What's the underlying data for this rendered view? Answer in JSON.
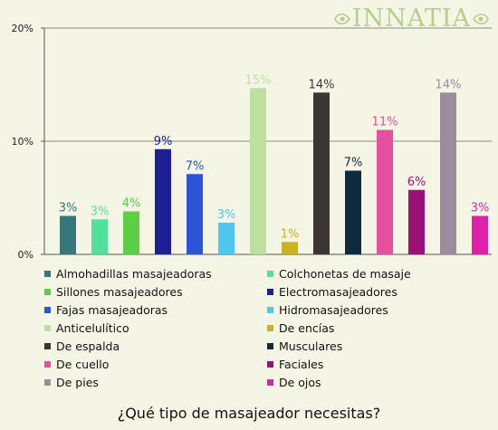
{
  "brand": {
    "name": "INNATIA",
    "color": "#b4d08c"
  },
  "chart_data": {
    "type": "bar",
    "title": "¿Qué tipo de masajeador necesitas?",
    "xlabel": "",
    "ylabel": "",
    "ylim": [
      0,
      20
    ],
    "yticks": [
      0,
      10,
      20
    ],
    "ytick_labels": [
      "0%",
      "10%",
      "20%"
    ],
    "grid": "horizontal",
    "legend_position": "bottom",
    "categories": [
      "Almohadillas masajeadoras",
      "Colchonetas de masaje",
      "Sillones masajeadores",
      "Electromasajeadores",
      "Fajas masajeadoras",
      "Hidromasajeadores",
      "Anticelulítico",
      "De encías",
      "De espalda",
      "Musculares",
      "De cuello",
      "Faciales",
      "De pies",
      "De ojos"
    ],
    "values": [
      3.4,
      3.1,
      3.8,
      9.3,
      7.1,
      2.8,
      14.7,
      1.1,
      14.3,
      7.4,
      11.0,
      5.7,
      14.3,
      3.4
    ],
    "data_labels": [
      "3%",
      "3%",
      "4%",
      "9%",
      "7%",
      "3%",
      "15%",
      "1%",
      "14%",
      "7%",
      "11%",
      "6%",
      "14%",
      "3%"
    ],
    "colors": [
      "#36777a",
      "#4ee29a",
      "#5ccf45",
      "#1c2094",
      "#2b55d8",
      "#50c7ec",
      "#bde0a0",
      "#ccb21d",
      "#3d3434",
      "#0e2a3c",
      "#e54f9c",
      "#9a1279",
      "#9d8c9d",
      "#dc23a8"
    ],
    "label_colors": [
      "#36777a",
      "#4ee29a",
      "#5ccf45",
      "#1c2094",
      "#2b55d8",
      "#50c7ec",
      "#bde0a0",
      "#ccb21d",
      "#3d3434",
      "#0e2a3c",
      "#e54f9c",
      "#9a1279",
      "#9d8c9d",
      "#dc23a8"
    ]
  }
}
